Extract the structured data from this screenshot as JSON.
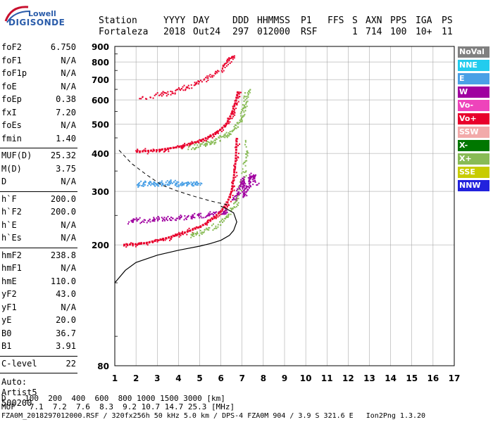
{
  "logo": {
    "top": "Lowell",
    "bottom": "DIGISONDE"
  },
  "header": {
    "row1": [
      "Station",
      "YYYY",
      "DAY",
      "DDD",
      "HHMMSS",
      "P1",
      "FFS",
      "S",
      "AXN",
      "PPS",
      "IGA",
      "PS"
    ],
    "row2": [
      "Fortaleza",
      "2018",
      "Out24",
      "297",
      "012000",
      "RSF",
      "1",
      "714",
      "100",
      "10+",
      "11"
    ]
  },
  "params_group1": [
    {
      "name": "foF2",
      "value": "6.750"
    },
    {
      "name": "foF1",
      "value": "N/A"
    },
    {
      "name": "foF1p",
      "value": "N/A"
    },
    {
      "name": "foE",
      "value": "N/A"
    },
    {
      "name": "foEp",
      "value": "0.38"
    },
    {
      "name": "fxI",
      "value": "7.20"
    },
    {
      "name": "foEs",
      "value": "N/A"
    },
    {
      "name": "fmin",
      "value": "1.40"
    }
  ],
  "params_group2": [
    {
      "name": "MUF(D)",
      "value": "25.32"
    },
    {
      "name": "M(D)",
      "value": "3.75"
    },
    {
      "name": "D",
      "value": "N/A"
    }
  ],
  "params_group3": [
    {
      "name": "h`F",
      "value": "200.0"
    },
    {
      "name": "h`F2",
      "value": "200.0"
    },
    {
      "name": "h`E",
      "value": "N/A"
    },
    {
      "name": "h`Es",
      "value": "N/A"
    }
  ],
  "params_group4": [
    {
      "name": "hmF2",
      "value": "238.8"
    },
    {
      "name": "hmF1",
      "value": "N/A"
    },
    {
      "name": "hmE",
      "value": "110.0"
    },
    {
      "name": "yF2",
      "value": "43.0"
    },
    {
      "name": "yF1",
      "value": "N/A"
    },
    {
      "name": "yE",
      "value": "20.0"
    },
    {
      "name": "B0",
      "value": "36.7"
    },
    {
      "name": "B1",
      "value": "3.91"
    }
  ],
  "clevel": {
    "name": "C-level",
    "value": "22"
  },
  "autoscaling": [
    "Auto:",
    "Artist5",
    "500200"
  ],
  "legend": [
    {
      "label": "NoVal",
      "color": "#808080"
    },
    {
      "label": "NNE",
      "color": "#22ccee"
    },
    {
      "label": "E",
      "color": "#4aa0e6"
    },
    {
      "label": "W",
      "color": "#a000a0"
    },
    {
      "label": "Vo-",
      "color": "#ee44bb"
    },
    {
      "label": "Vo+",
      "color": "#e8002c"
    },
    {
      "label": "SSW",
      "color": "#f2aaaa"
    },
    {
      "label": "X-",
      "color": "#007700"
    },
    {
      "label": "X+",
      "color": "#88bb55"
    },
    {
      "label": "SSE",
      "color": "#c8cc00"
    },
    {
      "label": "NNW",
      "color": "#2222dd"
    }
  ],
  "bottom": {
    "d_row": "D    100  200  400  600  800 1000 1500 3000 [km]",
    "muf_row": "MUF   7.1  7.2  7.6  8.3  9.2 10.7 14.7 25.3 [MHz]",
    "footer": "FZA0M_2018297012000.RSF / 320fx256h 50 kHz 5.0 km / DPS-4 FZA0M 904 / 3.9 S 321.6 E   Ion2Png 1.3.20"
  },
  "chart_data": {
    "type": "scatter",
    "x_ticks": [
      1,
      2,
      3,
      4,
      5,
      6,
      7,
      8,
      9,
      10,
      11,
      12,
      13,
      14,
      15,
      16,
      17
    ],
    "y_ticks": [
      80,
      200,
      300,
      400,
      500,
      600,
      700,
      800,
      900
    ],
    "xlim": [
      1,
      17
    ],
    "y_scale": "log",
    "ylim": [
      80,
      900
    ],
    "grid": true,
    "traces": [
      {
        "name": "F2-O",
        "color": "#e8002c",
        "x": [
          1.4,
          2.0,
          2.5,
          3.0,
          3.5,
          4.0,
          4.5,
          5.0,
          5.5,
          6.0,
          6.3,
          6.5,
          6.6,
          6.7,
          6.75
        ],
        "y": [
          200,
          201,
          203,
          207,
          211,
          216,
          222,
          229,
          240,
          258,
          275,
          300,
          330,
          380,
          450
        ]
      },
      {
        "name": "F2-X",
        "color": "#88bb55",
        "x": [
          4.5,
          5.0,
          5.5,
          6.0,
          6.3,
          6.6,
          6.8,
          7.0,
          7.1,
          7.2
        ],
        "y": [
          214,
          220,
          227,
          237,
          250,
          270,
          290,
          330,
          380,
          440
        ]
      },
      {
        "name": "2F-O",
        "color": "#e8002c",
        "x": [
          2.0,
          3.0,
          4.0,
          4.5,
          5.0,
          5.5,
          6.0,
          6.3,
          6.5,
          6.7,
          6.8
        ],
        "y": [
          405,
          410,
          420,
          428,
          440,
          455,
          480,
          505,
          540,
          590,
          640
        ]
      },
      {
        "name": "2F-X",
        "color": "#88bb55",
        "x": [
          4.5,
          5.0,
          5.5,
          6.0,
          6.4,
          6.8,
          7.0,
          7.1,
          7.2
        ],
        "y": [
          418,
          425,
          436,
          450,
          470,
          500,
          540,
          590,
          650
        ]
      },
      {
        "name": "3F-O",
        "color": "#e8002c",
        "x": [
          2.2,
          3.0,
          3.5,
          4.0,
          4.5,
          5.0,
          5.5,
          6.0,
          6.3,
          6.5
        ],
        "y": [
          612,
          620,
          632,
          648,
          665,
          690,
          720,
          760,
          800,
          830
        ]
      },
      {
        "name": "ESpread",
        "color": "#a000a0",
        "x": [
          1.6,
          2.0,
          2.5,
          3.0,
          3.5,
          4.0,
          4.5,
          5.0,
          5.5,
          6.0,
          6.2
        ],
        "y": [
          238,
          240,
          242,
          244,
          243,
          245,
          248,
          250,
          252,
          255,
          258
        ]
      },
      {
        "name": "Spread-W",
        "color": "#a000a0",
        "x": [
          6.6,
          6.8,
          7.0,
          7.1,
          7.2,
          7.4,
          7.6
        ],
        "y": [
          280,
          300,
          330,
          290,
          310,
          340,
          320
        ]
      },
      {
        "name": "Sporadic-E",
        "color": "#4aa0e6",
        "x": [
          2.0,
          2.5,
          3.0,
          3.5,
          4.0,
          4.5,
          5.0
        ],
        "y": [
          315,
          320,
          318,
          322,
          316,
          320,
          318
        ]
      }
    ],
    "profile": {
      "x": [
        1.0,
        1.5,
        2.0,
        3.0,
        4.0,
        5.0,
        5.5,
        6.0,
        6.4,
        6.6,
        6.75,
        6.6,
        6.3,
        6.0
      ],
      "y": [
        150,
        165,
        175,
        185,
        192,
        198,
        202,
        207,
        215,
        223,
        238,
        255,
        262,
        268
      ]
    },
    "dashed": {
      "x": [
        1.2,
        1.8,
        2.5,
        3.2,
        4.0,
        4.8,
        5.6,
        6.4
      ],
      "y": [
        410,
        370,
        340,
        315,
        300,
        288,
        278,
        270
      ]
    }
  }
}
